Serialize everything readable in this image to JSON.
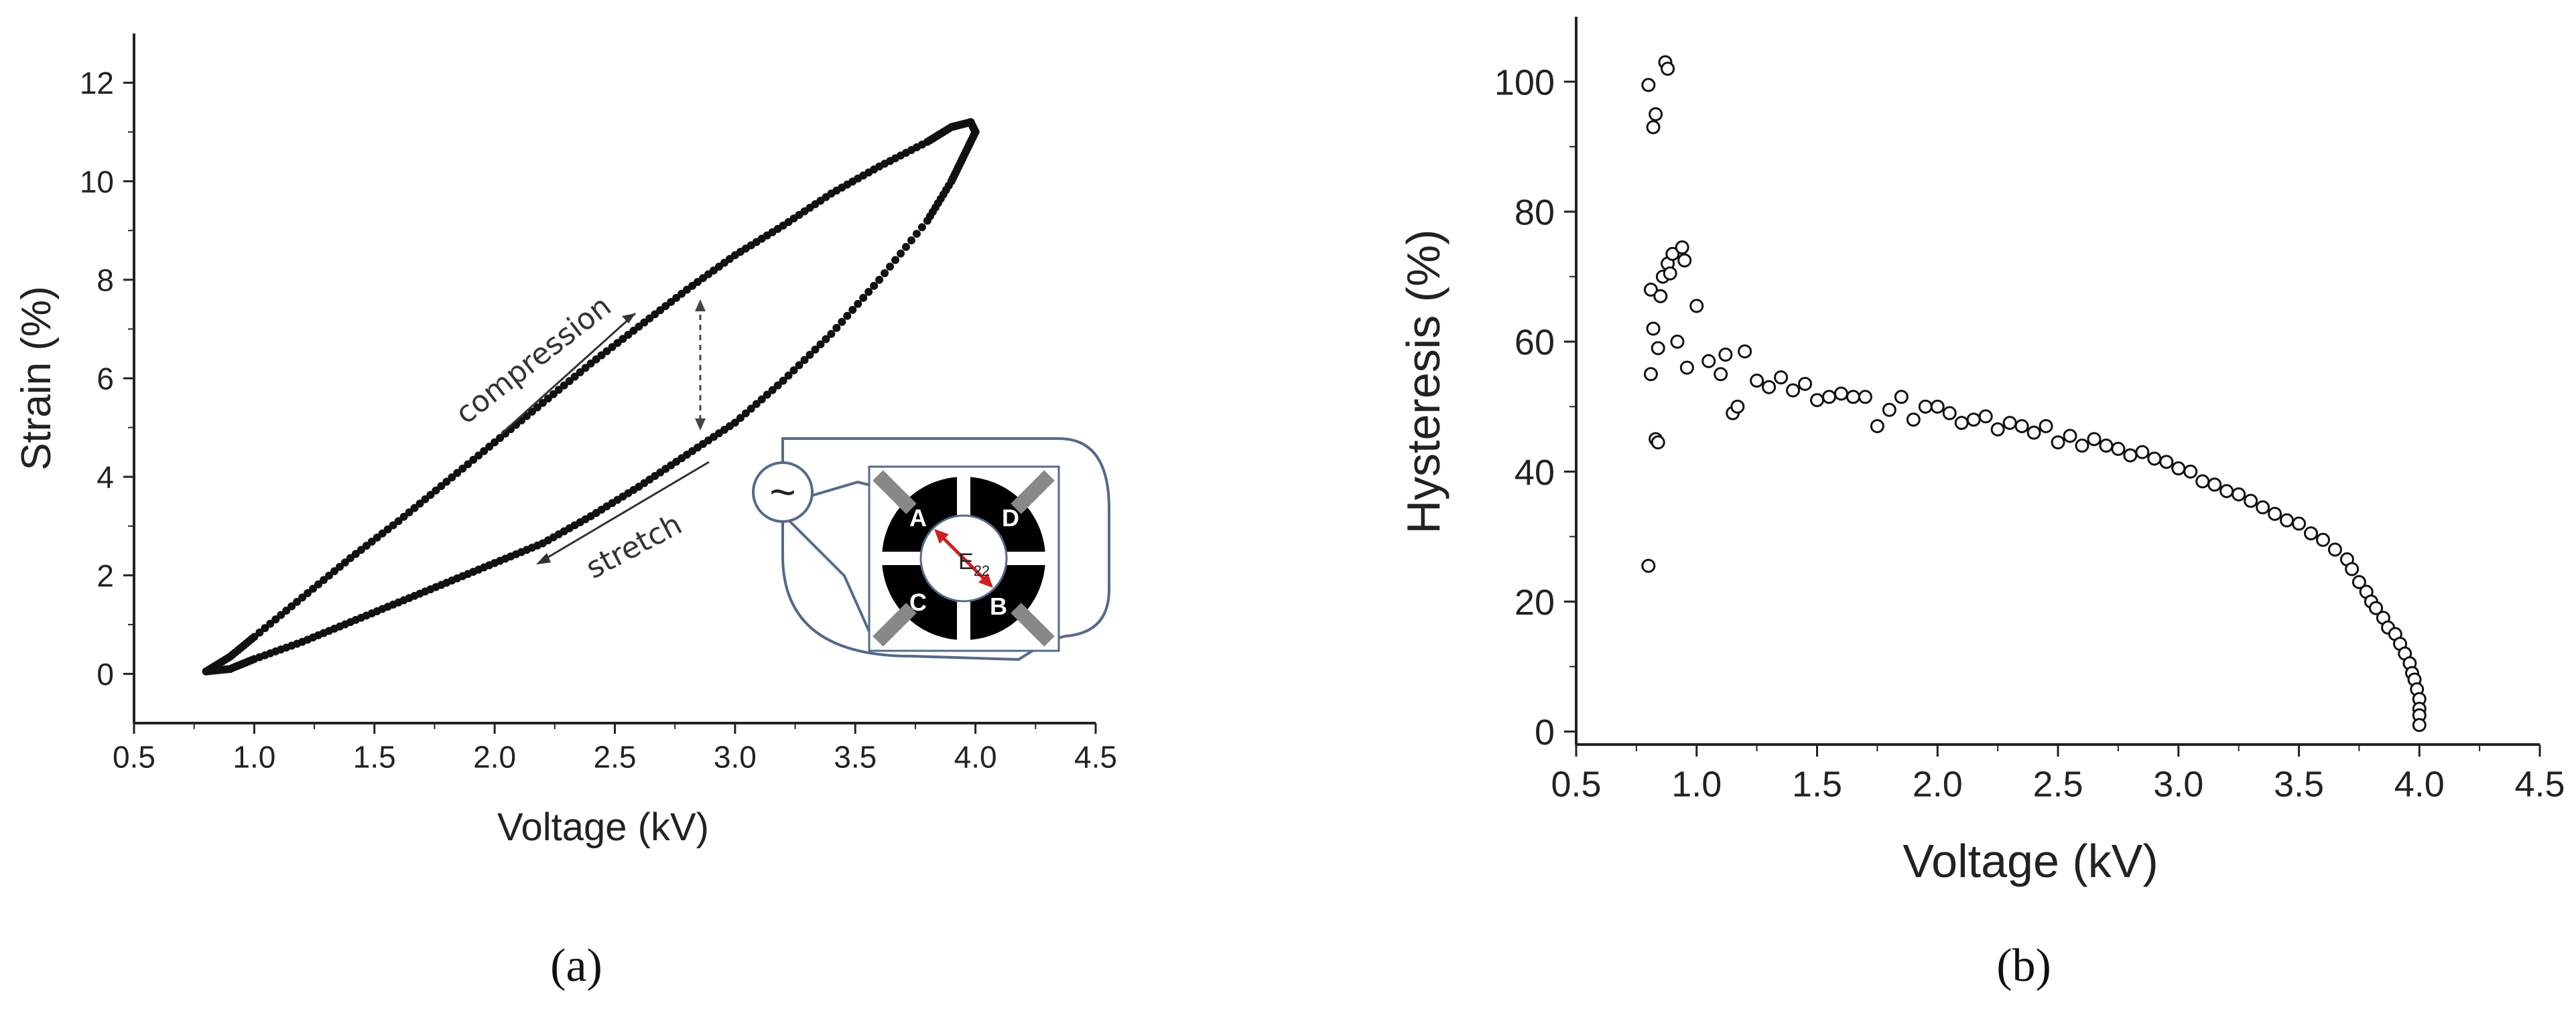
{
  "panels": [
    "(a)",
    "(b)"
  ],
  "chart_data": [
    {
      "type": "scatter",
      "panel": "(a)",
      "xlabel": "Voltage (kV)",
      "ylabel": "Strain (%)",
      "xlim": [
        0.5,
        4.5
      ],
      "ylim": [
        -1,
        13
      ],
      "xticks": [
        0.5,
        1.0,
        1.5,
        2.0,
        2.5,
        3.0,
        3.5,
        4.0,
        4.5
      ],
      "xtick_labels": [
        "0.5",
        "1.0",
        "1.5",
        "2.0",
        "2.5",
        "3.0",
        "3.5",
        "4.0",
        "4.5"
      ],
      "yticks": [
        0,
        2,
        4,
        6,
        8,
        10,
        12
      ],
      "ytick_labels": [
        "0",
        "2",
        "4",
        "6",
        "8",
        "10",
        "12"
      ],
      "marker": "filled-dot",
      "marker_color": "#111111",
      "series": [
        {
          "values_x": [
            0.8,
            0.9,
            1.0,
            1.2,
            1.4,
            1.6,
            1.8,
            2.0,
            2.2,
            2.4,
            2.6,
            2.8,
            3.0,
            3.2,
            3.4,
            3.6,
            3.8,
            3.9,
            3.98,
            4.0
          ],
          "values_y": [
            0.05,
            0.35,
            0.75,
            1.55,
            2.35,
            3.1,
            3.9,
            4.7,
            5.5,
            6.3,
            7.05,
            7.8,
            8.5,
            9.1,
            9.75,
            10.3,
            10.8,
            11.1,
            11.2,
            11.0
          ]
        },
        {
          "values_x": [
            4.0,
            3.95,
            3.9,
            3.8,
            3.6,
            3.4,
            3.2,
            3.0,
            2.8,
            2.6,
            2.4,
            2.2,
            2.0,
            1.8,
            1.6,
            1.4,
            1.2,
            1.0,
            0.9,
            0.8
          ],
          "values_y": [
            11.0,
            10.5,
            10.0,
            9.2,
            8.0,
            6.9,
            5.95,
            5.1,
            4.45,
            3.8,
            3.2,
            2.65,
            2.25,
            1.85,
            1.45,
            1.05,
            0.65,
            0.3,
            0.1,
            0.05
          ]
        }
      ],
      "annotations": [
        "compression",
        "stretch"
      ],
      "inset": {
        "source_symbol": "~",
        "electrodes": [
          "A",
          "D",
          "C",
          "B"
        ],
        "field_label": "E",
        "field_subscript": "22"
      }
    },
    {
      "type": "scatter",
      "panel": "(b)",
      "xlabel": "Voltage (kV)",
      "ylabel": "Hysteresis (%)",
      "xlim": [
        0.5,
        4.5
      ],
      "ylim": [
        -2,
        110
      ],
      "xticks": [
        0.5,
        1.0,
        1.5,
        2.0,
        2.5,
        3.0,
        3.5,
        4.0,
        4.5
      ],
      "xtick_labels": [
        "0.5",
        "1.0",
        "1.5",
        "2.0",
        "2.5",
        "3.0",
        "3.5",
        "4.0",
        "4.5"
      ],
      "yticks": [
        0,
        20,
        40,
        60,
        80,
        100
      ],
      "ytick_labels": [
        "0",
        "20",
        "40",
        "60",
        "80",
        "100"
      ],
      "marker": "open-circle",
      "marker_color": "#111111",
      "x": [
        0.8,
        0.8,
        0.81,
        0.81,
        0.82,
        0.82,
        0.83,
        0.83,
        0.84,
        0.84,
        0.85,
        0.86,
        0.87,
        0.88,
        0.88,
        0.89,
        0.9,
        0.92,
        0.94,
        0.95,
        0.96,
        1.0,
        1.05,
        1.1,
        1.12,
        1.15,
        1.17,
        1.2,
        1.25,
        1.3,
        1.35,
        1.4,
        1.45,
        1.5,
        1.55,
        1.6,
        1.65,
        1.7,
        1.75,
        1.8,
        1.85,
        1.9,
        1.95,
        2.0,
        2.05,
        2.1,
        2.15,
        2.2,
        2.25,
        2.3,
        2.35,
        2.4,
        2.45,
        2.5,
        2.55,
        2.6,
        2.65,
        2.7,
        2.75,
        2.8,
        2.85,
        2.9,
        2.95,
        3.0,
        3.05,
        3.1,
        3.15,
        3.2,
        3.25,
        3.3,
        3.35,
        3.4,
        3.45,
        3.5,
        3.55,
        3.6,
        3.65,
        3.7,
        3.72,
        3.75,
        3.78,
        3.8,
        3.82,
        3.85,
        3.87,
        3.9,
        3.92,
        3.94,
        3.96,
        3.97,
        3.98,
        3.99,
        4.0,
        4.0,
        4.0,
        4.0
      ],
      "y": [
        99.5,
        25.5,
        55,
        68,
        62,
        93,
        95,
        45,
        44.5,
        59,
        67,
        70,
        103,
        102,
        72,
        70.5,
        73.5,
        60,
        74.5,
        72.5,
        56,
        65.5,
        57,
        55,
        58,
        49,
        50,
        58.5,
        54,
        53,
        54.5,
        52.5,
        53.5,
        51,
        51.5,
        52,
        51.5,
        51.5,
        47,
        49.5,
        51.5,
        48,
        50,
        50,
        49,
        47.5,
        48,
        48.5,
        46.5,
        47.5,
        47,
        46,
        47,
        44.5,
        45.5,
        44,
        45,
        44,
        43.5,
        42.5,
        43,
        42,
        41.5,
        40.5,
        40,
        38.5,
        38,
        37,
        36.5,
        35.5,
        34.5,
        33.5,
        32.5,
        32,
        30.5,
        29.5,
        28,
        26.5,
        25,
        23,
        21.5,
        20,
        19,
        17.5,
        16,
        15,
        13.5,
        12,
        10.5,
        9,
        8,
        6.5,
        5,
        3.5,
        2.5,
        1
      ]
    }
  ]
}
